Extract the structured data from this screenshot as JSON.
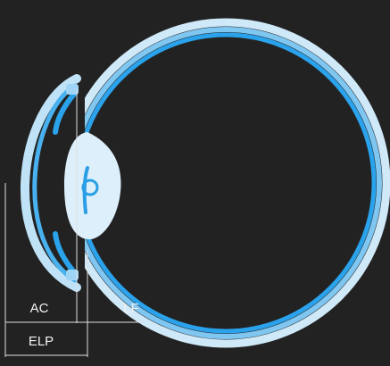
{
  "diagram": {
    "labels": {
      "ac": "AC",
      "lf": "LF",
      "elp": "ELP"
    },
    "colors": {
      "background": "#222222",
      "sclera_outer": "#cfe9f8",
      "sclera_inner": "#2aa3ec",
      "cornea": "#bfe2f7",
      "lens": "#dceffa",
      "lens_core": "#2a9fe5",
      "measurement_lines": "#e0e0e0"
    }
  }
}
